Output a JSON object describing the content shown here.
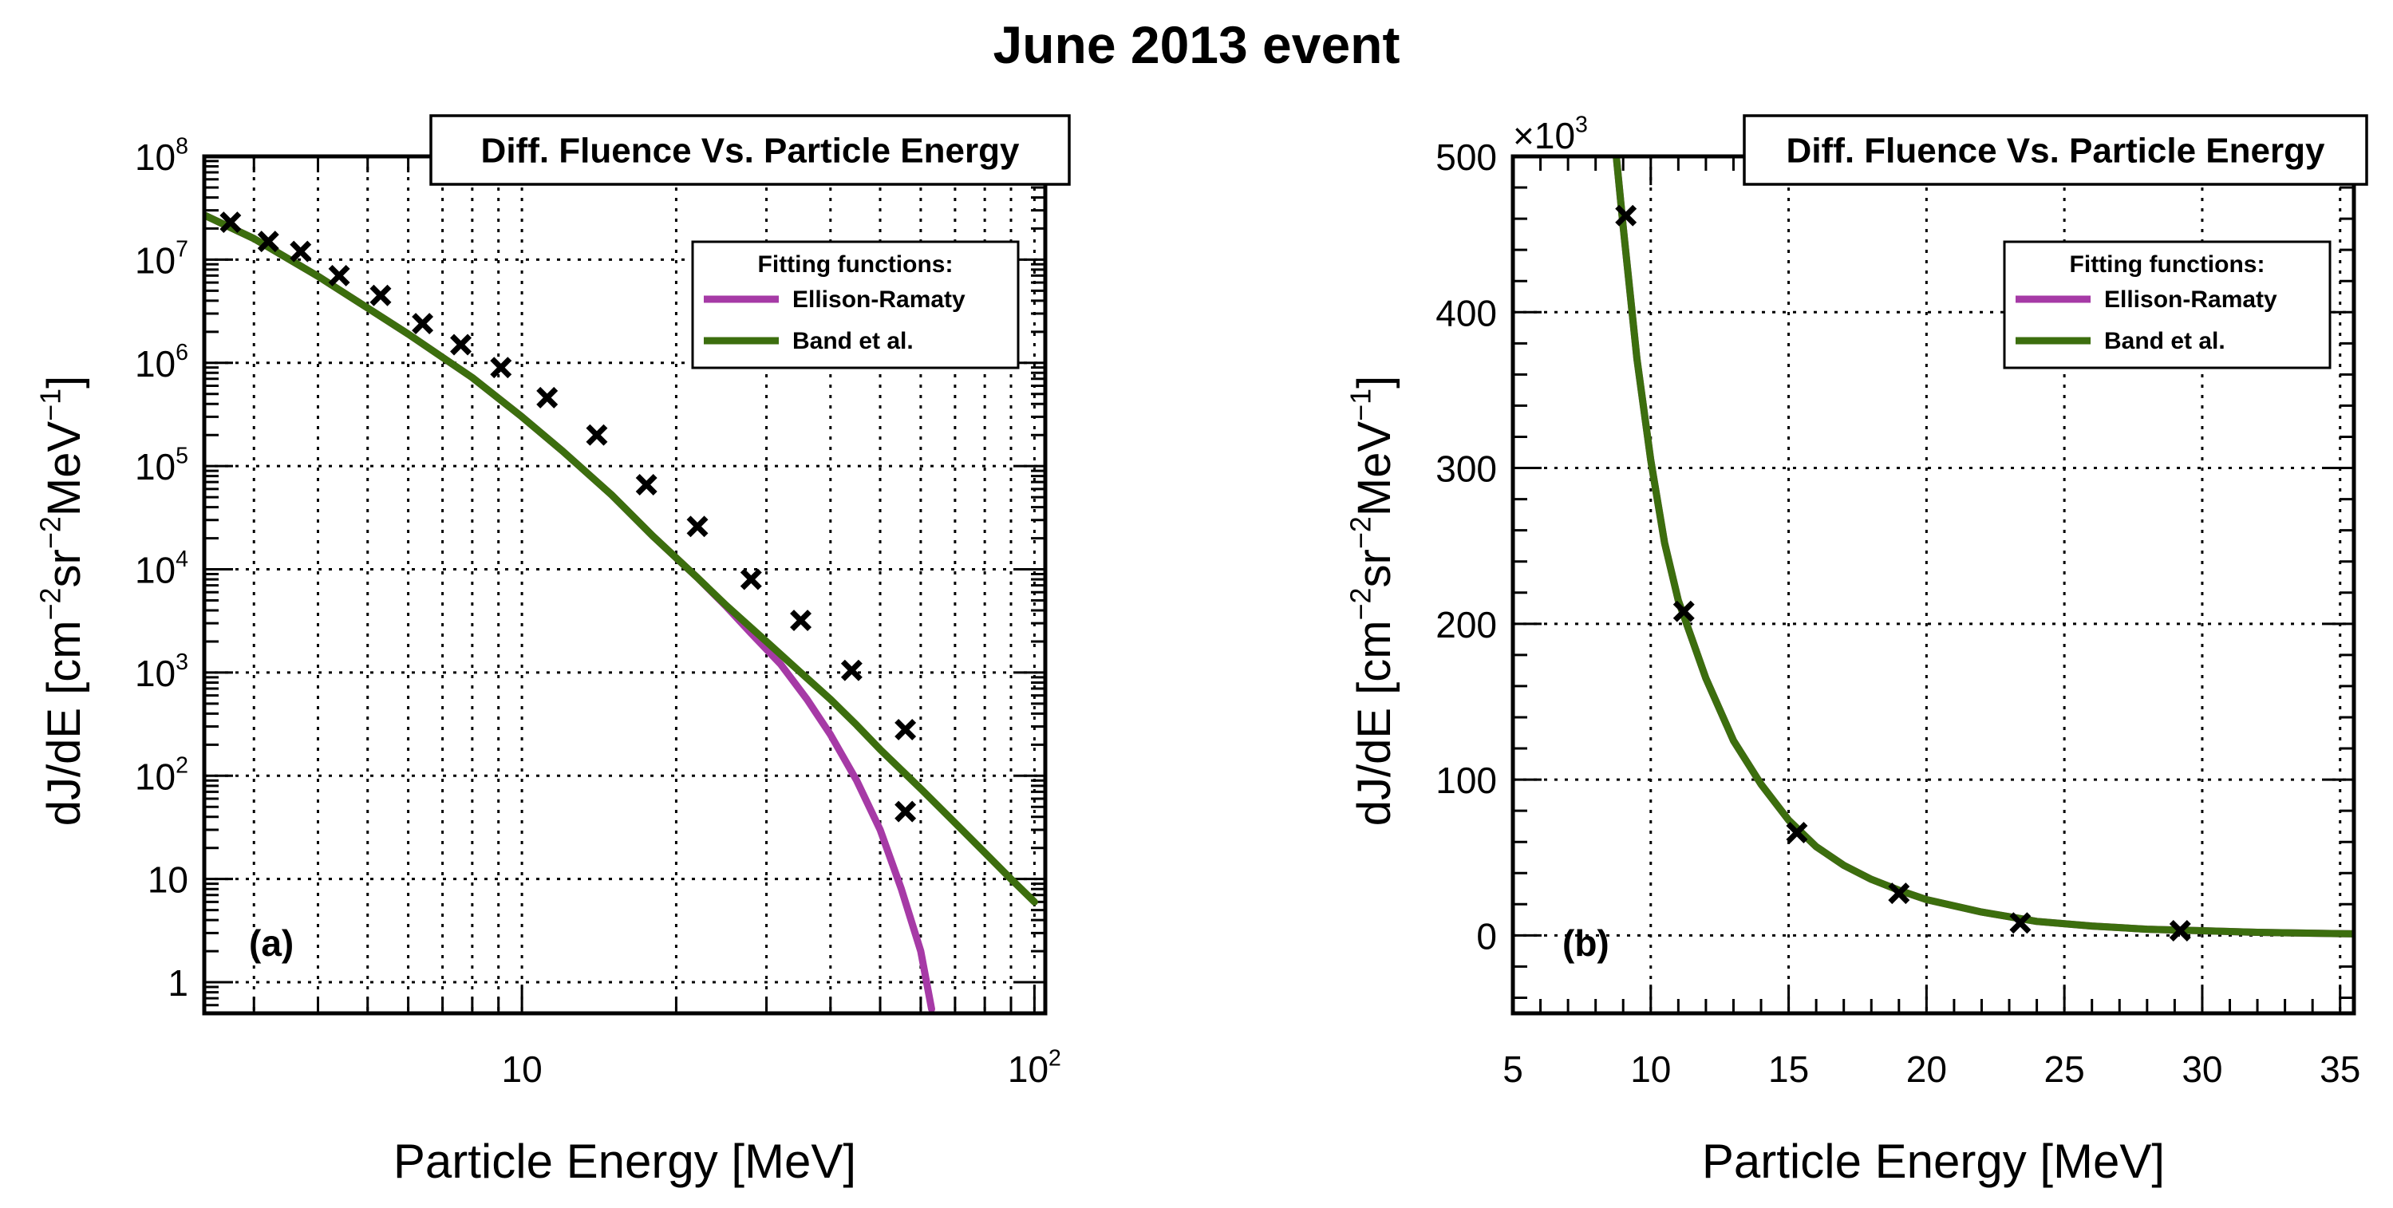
{
  "title": "June 2013 event",
  "colors": {
    "ellison_ramaty": "#A63AA6",
    "band": "#3C6E0E",
    "marker": "#000000",
    "grid": "#000000"
  },
  "chart_data": [
    {
      "type": "line",
      "panel_label": "(a)",
      "title": "Diff. Fluence Vs. Particle Energy",
      "xlabel": "Particle Energy [MeV]",
      "ylabel_parts": [
        "dJ/dE [cm",
        "−2",
        "sr",
        "−2",
        "MeV",
        "−1",
        "]"
      ],
      "xscale": "log",
      "yscale": "log",
      "xlim": [
        2.4,
        105
      ],
      "ylim": [
        0.5,
        100000000
      ],
      "x_tick_labels": [
        {
          "value": 10,
          "base": "10",
          "exp": ""
        },
        {
          "value": 100,
          "base": "10",
          "exp": "2"
        }
      ],
      "y_tick_labels": [
        {
          "value": 1,
          "base": "1",
          "exp": ""
        },
        {
          "value": 10,
          "base": "10",
          "exp": ""
        },
        {
          "value": 100,
          "base": "10",
          "exp": "2"
        },
        {
          "value": 1000,
          "base": "10",
          "exp": "3"
        },
        {
          "value": 10000,
          "base": "10",
          "exp": "4"
        },
        {
          "value": 100000,
          "base": "10",
          "exp": "5"
        },
        {
          "value": 1000000,
          "base": "10",
          "exp": "6"
        },
        {
          "value": 10000000,
          "base": "10",
          "exp": "7"
        },
        {
          "value": 100000000,
          "base": "10",
          "exp": "8"
        }
      ],
      "grid": true,
      "legend": {
        "title": "Fitting functions:",
        "position": "top-right",
        "entries": [
          "Ellison-Ramaty",
          "Band et al."
        ]
      },
      "markers": {
        "x": [
          2.7,
          3.2,
          3.7,
          4.4,
          5.3,
          6.4,
          7.6,
          9.1,
          11.2,
          14.0,
          17.5,
          22.0,
          28.0,
          35.0,
          44.0,
          56.0
        ],
        "y": [
          23000000,
          15000000,
          12000000,
          7000000,
          4500000,
          2400000,
          1500000,
          900000,
          460000,
          200000,
          66000,
          26000,
          8000,
          3200,
          1050,
          280
        ],
        "outlier": {
          "x": 56.0,
          "y": 45
        }
      },
      "series": [
        {
          "name": "Band et al.",
          "x": [
            2.4,
            3,
            4,
            5,
            6,
            8,
            10,
            12,
            15,
            18,
            22,
            25,
            30,
            35,
            40,
            45,
            50,
            60,
            70,
            80,
            90,
            100
          ],
          "y": [
            27000000,
            16000000,
            6900000,
            3400000,
            1900000,
            720000,
            300000,
            140000,
            52000,
            21000,
            8300,
            4500,
            2000,
            1000,
            550,
            310,
            180,
            75,
            35,
            18,
            10,
            6
          ]
        },
        {
          "name": "Ellison-Ramaty",
          "x": [
            2.4,
            3,
            4,
            5,
            6,
            8,
            10,
            12,
            15,
            18,
            22,
            25,
            28,
            32,
            36,
            40,
            45,
            50,
            55,
            60,
            63
          ],
          "y": [
            27000000,
            16000000,
            6900000,
            3400000,
            1900000,
            720000,
            300000,
            140000,
            52000,
            21000,
            8300,
            4400,
            2400,
            1200,
            550,
            250,
            90,
            30,
            8,
            2,
            0.55
          ]
        }
      ]
    },
    {
      "type": "line",
      "panel_label": "(b)",
      "title": "Diff. Fluence Vs. Particle Energy",
      "xlabel": "Particle Energy [MeV]",
      "ylabel_parts": [
        "dJ/dE [cm",
        "−2",
        "sr",
        "−2",
        "MeV",
        "−1",
        "]"
      ],
      "y_multiplier": {
        "base": "×10",
        "exp": "3"
      },
      "xscale": "linear",
      "yscale": "linear",
      "xlim": [
        5,
        35.5
      ],
      "ylim": [
        -50,
        500
      ],
      "x_ticks": [
        5,
        10,
        15,
        20,
        25,
        30,
        35
      ],
      "y_ticks": [
        0,
        100,
        200,
        300,
        400,
        500
      ],
      "grid": true,
      "legend": {
        "title": "Fitting functions:",
        "position": "top-right",
        "entries": [
          "Ellison-Ramaty",
          "Band et al."
        ]
      },
      "markers": {
        "x": [
          9.1,
          11.2,
          15.3,
          19.0,
          23.4,
          29.2
        ],
        "y": [
          462,
          208,
          66,
          27,
          8,
          3
        ]
      },
      "series": [
        {
          "name": "Band et al.",
          "x": [
            8.75,
            9,
            9.5,
            10,
            10.5,
            11,
            11.5,
            12,
            13,
            14,
            15,
            16,
            17,
            18,
            19,
            20,
            22,
            24,
            26,
            28,
            30,
            32,
            35.5
          ],
          "y": [
            500,
            455,
            370,
            305,
            252,
            215,
            190,
            165,
            125,
            97,
            74,
            57,
            45,
            36,
            29,
            23,
            15,
            9,
            6,
            4,
            3,
            2,
            1
          ]
        },
        {
          "name": "Ellison-Ramaty",
          "x": [
            8.75,
            9,
            9.5,
            10,
            10.5,
            11,
            11.5,
            12,
            13,
            14,
            15,
            16,
            17,
            18,
            19,
            20,
            22,
            24,
            26,
            28,
            30,
            32,
            35.5
          ],
          "y": [
            500,
            455,
            370,
            305,
            252,
            215,
            190,
            165,
            125,
            97,
            74,
            57,
            45,
            36,
            29,
            23,
            15,
            9,
            6,
            4,
            3,
            2,
            1
          ]
        }
      ]
    }
  ]
}
